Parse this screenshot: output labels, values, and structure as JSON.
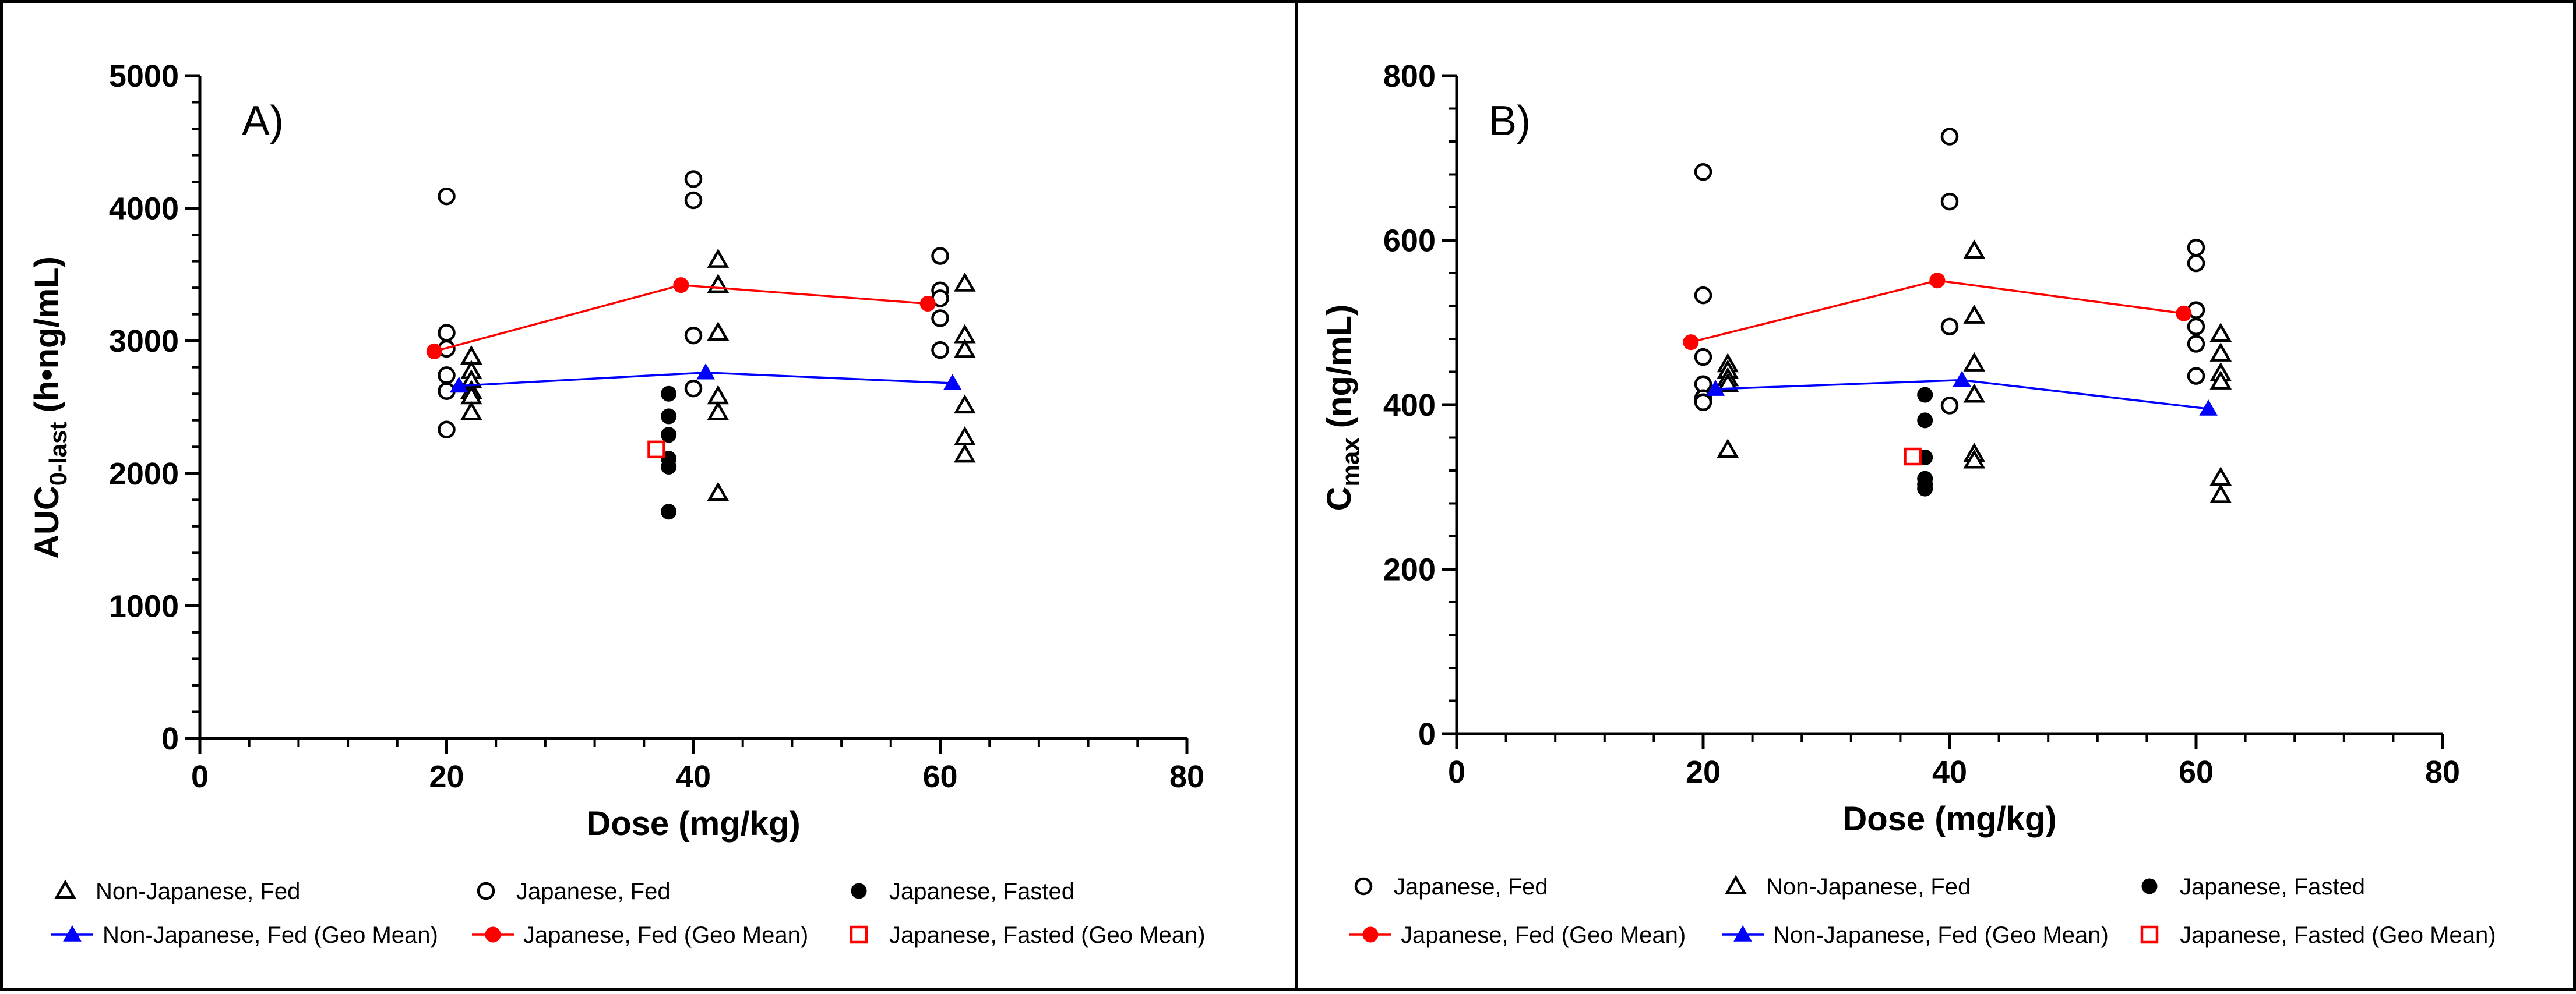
{
  "chart_data": [
    {
      "type": "scatter",
      "panel_label": "A)",
      "xlabel": "Dose (mg/kg)",
      "ylabel_main": "AUC",
      "ylabel_sub": "0-last",
      "ylabel_unit": " (h•ng/mL)",
      "xlim": [
        0,
        80
      ],
      "ylim": [
        0,
        5000
      ],
      "xticks": [
        "0",
        "20",
        "40",
        "60",
        "80"
      ],
      "yticks": [
        "0",
        "1000",
        "2000",
        "3000",
        "4000",
        "5000"
      ],
      "xtick_values": [
        0,
        20,
        40,
        60,
        80
      ],
      "ytick_values": [
        0,
        1000,
        2000,
        3000,
        4000,
        5000
      ],
      "series": [
        {
          "name": "Japanese, Fed",
          "marker": "circle-open",
          "color": "#000000",
          "points": [
            [
              20,
              4090
            ],
            [
              20,
              3060
            ],
            [
              20,
              2940
            ],
            [
              20,
              2740
            ],
            [
              20,
              2620
            ],
            [
              20,
              2330
            ],
            [
              40,
              4220
            ],
            [
              40,
              4060
            ],
            [
              40,
              3040
            ],
            [
              40,
              2640
            ],
            [
              60,
              3640
            ],
            [
              60,
              3380
            ],
            [
              60,
              3320
            ],
            [
              60,
              3170
            ],
            [
              60,
              2930
            ]
          ]
        },
        {
          "name": "Non-Japanese, Fed",
          "marker": "triangle-open",
          "color": "#000000",
          "points": [
            [
              22,
              2880
            ],
            [
              22,
              2770
            ],
            [
              22,
              2700
            ],
            [
              22,
              2620
            ],
            [
              22,
              2580
            ],
            [
              22,
              2460
            ],
            [
              42,
              3610
            ],
            [
              42,
              3420
            ],
            [
              42,
              3060
            ],
            [
              42,
              2580
            ],
            [
              42,
              2460
            ],
            [
              42,
              1850
            ],
            [
              62,
              3430
            ],
            [
              62,
              3040
            ],
            [
              62,
              2930
            ],
            [
              62,
              2510
            ],
            [
              62,
              2270
            ],
            [
              62,
              2140
            ]
          ]
        },
        {
          "name": "Japanese, Fasted",
          "marker": "circle-filled",
          "color": "#000000",
          "points": [
            [
              38,
              2600
            ],
            [
              38,
              2430
            ],
            [
              38,
              2290
            ],
            [
              38,
              2110
            ],
            [
              38,
              2050
            ],
            [
              38,
              1710
            ]
          ]
        },
        {
          "name": "Japanese, Fed (Geo Mean)",
          "marker": "circle-filled",
          "color": "#ff0000",
          "line": true,
          "points": [
            [
              19,
              2920
            ],
            [
              39,
              3420
            ],
            [
              59,
              3280
            ]
          ]
        },
        {
          "name": "Non-Japanese, Fed (Geo Mean)",
          "marker": "triangle-filled",
          "color": "#0000ff",
          "line": true,
          "points": [
            [
              21,
              2660
            ],
            [
              41,
              2760
            ],
            [
              61,
              2680
            ]
          ]
        },
        {
          "name": "Japanese, Fasted (Geo Mean)",
          "marker": "square-open",
          "color": "#ff0000",
          "points": [
            [
              37,
              2180
            ]
          ]
        }
      ],
      "legend": [
        [
          "Non-Japanese, Fed",
          "Japanese, Fed",
          "Japanese, Fasted"
        ],
        [
          "Non-Japanese, Fed (Geo Mean)",
          "Japanese, Fed (Geo Mean)",
          "Japanese, Fasted (Geo Mean)"
        ]
      ]
    },
    {
      "type": "scatter",
      "panel_label": "B)",
      "xlabel": "Dose (mg/kg)",
      "ylabel_main": "C",
      "ylabel_sub": "max",
      "ylabel_unit": " (ng/mL)",
      "xlim": [
        0,
        80
      ],
      "ylim": [
        0,
        800
      ],
      "xticks": [
        "0",
        "20",
        "40",
        "60",
        "80"
      ],
      "yticks": [
        "0",
        "200",
        "400",
        "600",
        "800"
      ],
      "xtick_values": [
        0,
        20,
        40,
        60,
        80
      ],
      "ytick_values": [
        0,
        200,
        400,
        600,
        800
      ],
      "series": [
        {
          "name": "Japanese, Fed",
          "marker": "circle-open",
          "color": "#000000",
          "points": [
            [
              20,
              683
            ],
            [
              20,
              533
            ],
            [
              20,
              458
            ],
            [
              20,
              425
            ],
            [
              20,
              408
            ],
            [
              20,
              403
            ],
            [
              40,
              726
            ],
            [
              40,
              647
            ],
            [
              40,
              495
            ],
            [
              40,
              399
            ],
            [
              60,
              591
            ],
            [
              60,
              572
            ],
            [
              60,
              515
            ],
            [
              60,
              495
            ],
            [
              60,
              474
            ],
            [
              60,
              435
            ]
          ]
        },
        {
          "name": "Non-Japanese, Fed",
          "marker": "triangle-open",
          "color": "#000000",
          "points": [
            [
              22,
              449
            ],
            [
              22,
              441
            ],
            [
              22,
              432
            ],
            [
              22,
              425
            ],
            [
              22,
              345
            ],
            [
              42,
              587
            ],
            [
              42,
              508
            ],
            [
              42,
              450
            ],
            [
              42,
              412
            ],
            [
              42,
              340
            ],
            [
              42,
              332
            ],
            [
              62,
              486
            ],
            [
              62,
              462
            ],
            [
              62,
              438
            ],
            [
              62,
              428
            ],
            [
              62,
              311
            ],
            [
              62,
              290
            ]
          ]
        },
        {
          "name": "Japanese, Fasted",
          "marker": "circle-filled",
          "color": "#000000",
          "points": [
            [
              38,
              412
            ],
            [
              38,
              381
            ],
            [
              38,
              336
            ],
            [
              38,
              310
            ],
            [
              38,
              303
            ],
            [
              38,
              298
            ]
          ]
        },
        {
          "name": "Japanese, Fed (Geo Mean)",
          "marker": "circle-filled",
          "color": "#ff0000",
          "line": true,
          "points": [
            [
              19,
              476
            ],
            [
              39,
              551
            ],
            [
              59,
              511
            ]
          ]
        },
        {
          "name": "Non-Japanese, Fed (Geo Mean)",
          "marker": "triangle-filled",
          "color": "#0000ff",
          "line": true,
          "points": [
            [
              21,
              419
            ],
            [
              41,
              430
            ],
            [
              61,
              395
            ]
          ]
        },
        {
          "name": "Japanese, Fasted (Geo Mean)",
          "marker": "square-open",
          "color": "#ff0000",
          "points": [
            [
              37,
              337
            ]
          ]
        }
      ],
      "legend": [
        [
          "Japanese, Fed",
          "Non-Japanese, Fed",
          "Japanese, Fasted"
        ],
        [
          "Japanese, Fed (Geo Mean)",
          "Non-Japanese, Fed (Geo Mean)",
          "Japanese, Fasted (Geo Mean)"
        ]
      ]
    }
  ]
}
